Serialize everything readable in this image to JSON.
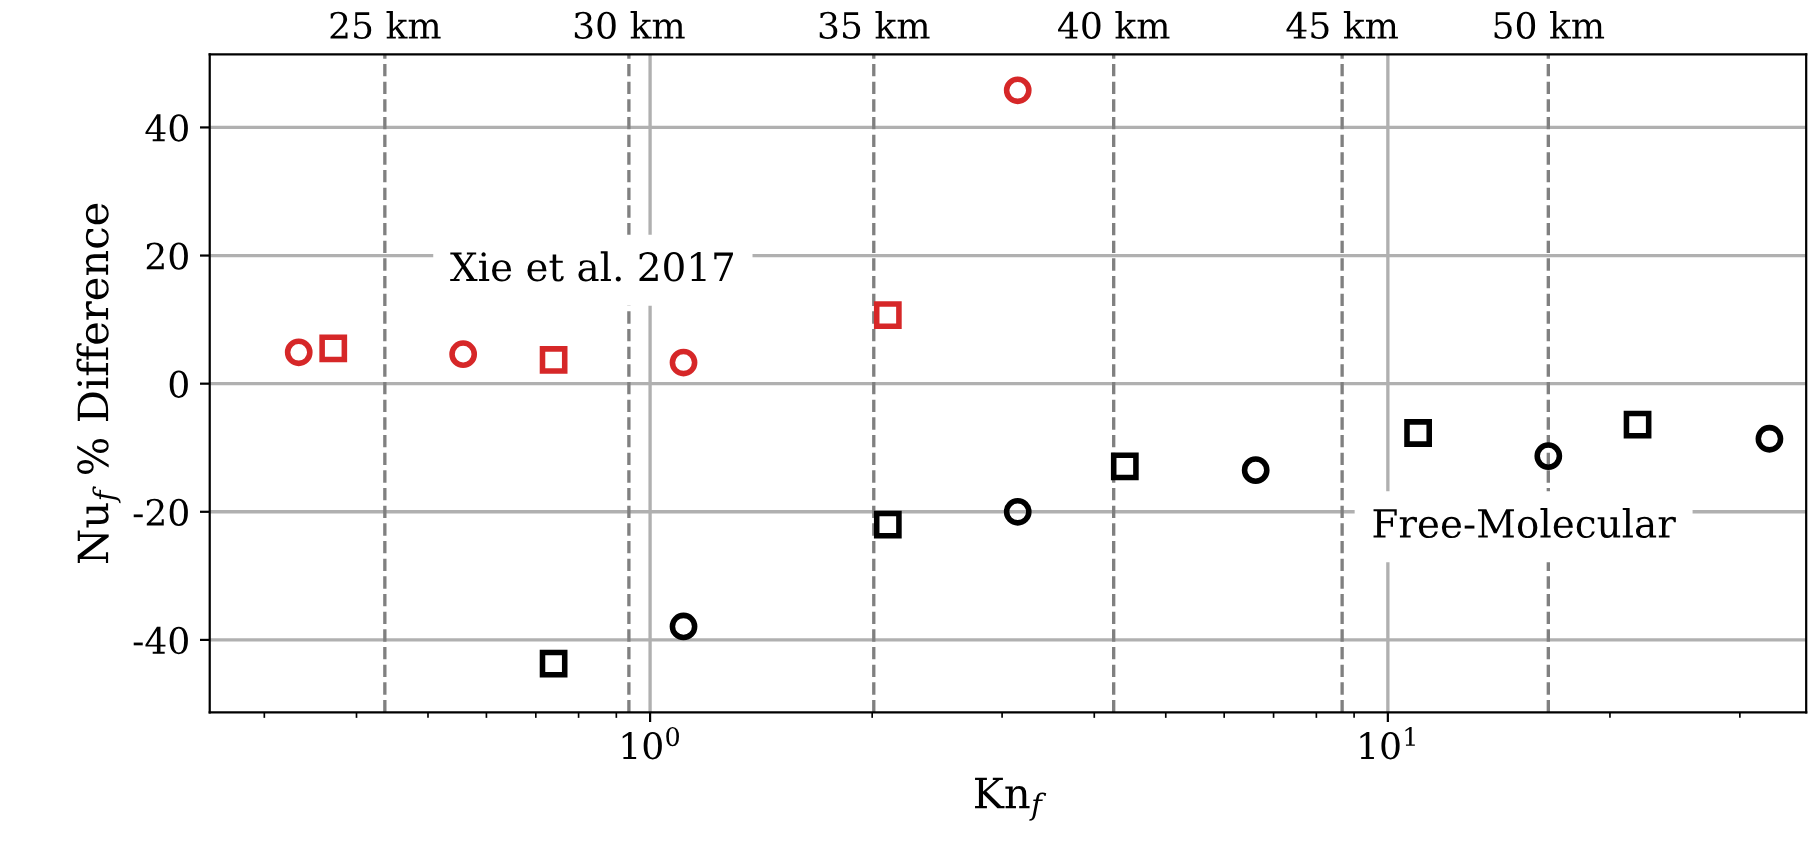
{
  "chart_data": {
    "type": "scatter",
    "xlabel": "Kn$_{f}$",
    "ylabel": "Nu$_{f}$ % Difference",
    "log": "x",
    "grid": true,
    "legend": false,
    "xlim": [
      0.253,
      36.9
    ],
    "xticks": [
      {
        "value": 1,
        "label": "10$^{0}$"
      },
      {
        "value": 10,
        "label": "10$^{1}$"
      }
    ],
    "ylim": [
      -51.3,
      51.4
    ],
    "yticks": [
      -40,
      -20,
      0,
      20,
      40
    ],
    "ref_lines": [
      {
        "axis": "x",
        "value": 0.437,
        "label": "25 km",
        "color": "#808080",
        "line_style": "dashed"
      },
      {
        "axis": "x",
        "value": 0.936,
        "label": "30 km",
        "color": "#808080",
        "line_style": "dashed"
      },
      {
        "axis": "x",
        "value": 2.01,
        "label": "35 km",
        "color": "#808080",
        "line_style": "dashed"
      },
      {
        "axis": "x",
        "value": 4.25,
        "label": "40 km",
        "color": "#808080",
        "line_style": "dashed"
      },
      {
        "axis": "x",
        "value": 8.67,
        "label": "45 km",
        "color": "#808080",
        "line_style": "dashed"
      },
      {
        "axis": "x",
        "value": 16.5,
        "label": "50 km",
        "color": "#808080",
        "line_style": "dashed"
      }
    ],
    "series": [
      {
        "color": "#d62728",
        "marker": "circle",
        "x": [
          0.334,
          0.558,
          1.11,
          3.15
        ],
        "values": [
          4.9,
          4.6,
          3.3,
          45.8
        ]
      },
      {
        "color": "#d62728",
        "marker": "square",
        "x": [
          0.372,
          0.74,
          2.1
        ],
        "values": [
          5.5,
          3.7,
          10.7
        ]
      },
      {
        "color": "#000000",
        "marker": "square",
        "x": [
          0.74,
          2.1,
          4.4,
          10.99,
          21.8
        ],
        "values": [
          -43.7,
          -22,
          -12.9,
          -7.7,
          -6.4
        ]
      },
      {
        "color": "#000000",
        "marker": "circle",
        "x": [
          1.11,
          3.15,
          6.62,
          16.5,
          32.9
        ],
        "values": [
          -37.9,
          -20,
          -13.5,
          -11.3,
          -8.6
        ]
      }
    ],
    "annotations": [
      "Xie et al. 2017",
      "Free-Molecular"
    ]
  }
}
